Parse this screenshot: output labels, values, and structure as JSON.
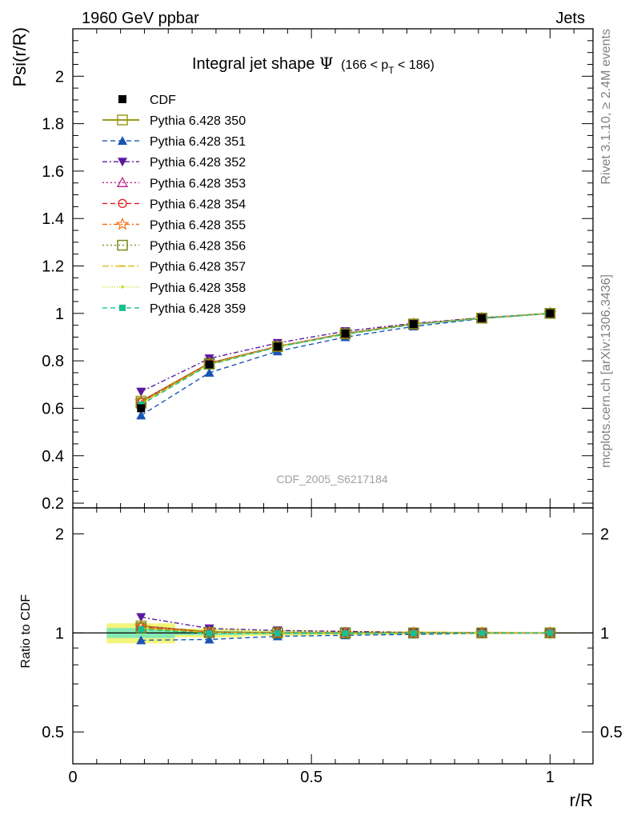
{
  "header": {
    "left": "1960 GeV ppbar",
    "right": "Jets"
  },
  "side_labels": {
    "rivet": "Rivet 3.1.10, ≥ 2.4M events",
    "mcplots": "mcplots.cern.ch [arXiv:1306.3436]"
  },
  "chart_data": {
    "type": "line",
    "title": {
      "main": "Integral jet shape",
      "symbol": "Ψ",
      "range_prefix": "(166 < p",
      "range_sub": "T",
      "range_suffix": " < 186)"
    },
    "analysis_label": "CDF_2005_S6217184",
    "xlabel": "r/R",
    "ylabel_top": "Psi(r/R)",
    "ylabel_bottom": "Ratio to CDF",
    "xlim": [
      0,
      1.09
    ],
    "ylim_top": [
      0.18,
      2.2
    ],
    "ylim_bottom_log": [
      0.4,
      2.4
    ],
    "x_ticks": [
      {
        "v": 0,
        "label": "0"
      },
      {
        "v": 0.5,
        "label": "0.5"
      },
      {
        "v": 1,
        "label": "1"
      }
    ],
    "y_ticks_top": [
      {
        "v": 0.2,
        "label": "0.2"
      },
      {
        "v": 0.4,
        "label": "0.4"
      },
      {
        "v": 0.6,
        "label": "0.6"
      },
      {
        "v": 0.8,
        "label": "0.8"
      },
      {
        "v": 1.0,
        "label": "1"
      },
      {
        "v": 1.2,
        "label": "1.2"
      },
      {
        "v": 1.4,
        "label": "1.4"
      },
      {
        "v": 1.6,
        "label": "1.6"
      },
      {
        "v": 1.8,
        "label": "1.8"
      },
      {
        "v": 2.0,
        "label": "2"
      }
    ],
    "y_ticks_bottom": [
      {
        "v": 0.5,
        "label": "0.5"
      },
      {
        "v": 1,
        "label": "1"
      },
      {
        "v": 2,
        "label": "2"
      }
    ],
    "x": [
      0.143,
      0.286,
      0.429,
      0.571,
      0.714,
      0.857,
      1.0
    ],
    "data": {
      "name": "CDF",
      "values": [
        0.6,
        0.785,
        0.86,
        0.915,
        0.955,
        0.98,
        1.0
      ],
      "errors": [
        0.01,
        0.008,
        0.006,
        0.005,
        0.004,
        0.003,
        0.0
      ],
      "color": "#000000",
      "marker": "square-filled"
    },
    "ratio_band": {
      "x_edges": [
        0.071,
        0.214,
        0.357,
        0.5,
        0.643,
        0.786,
        0.929,
        1.071
      ],
      "inner": [
        0.035,
        0.015,
        0.01,
        0.008,
        0.006,
        0.004,
        0.002
      ],
      "outer": [
        0.07,
        0.03,
        0.02,
        0.015,
        0.012,
        0.008,
        0.004
      ]
    },
    "series": [
      {
        "name": "Pythia 6.428 350",
        "color": "#9a9a1c",
        "dash": "",
        "marker": "square-open",
        "width": 2.0,
        "values": [
          0.63,
          0.79,
          0.86,
          0.915,
          0.955,
          0.98,
          1.0
        ]
      },
      {
        "name": "Pythia 6.428 351",
        "color": "#1a54b4",
        "dash": "6,4",
        "marker": "triangle-up-filled",
        "width": 1.4,
        "values": [
          0.57,
          0.75,
          0.84,
          0.9,
          0.945,
          0.978,
          1.0
        ]
      },
      {
        "name": "Pythia 6.428 352",
        "color": "#5a1aa0",
        "dash": "6,3,2,3",
        "marker": "triangle-down-filled",
        "width": 1.4,
        "values": [
          0.67,
          0.81,
          0.875,
          0.925,
          0.958,
          0.982,
          1.0
        ]
      },
      {
        "name": "Pythia 6.428 353",
        "color": "#c0208a",
        "dash": "2,3",
        "marker": "triangle-up-open",
        "width": 1.4,
        "values": [
          0.63,
          0.79,
          0.862,
          0.915,
          0.955,
          0.98,
          1.0
        ]
      },
      {
        "name": "Pythia 6.428 354",
        "color": "#e01a1a",
        "dash": "6,4",
        "marker": "circle-open",
        "width": 1.4,
        "values": [
          0.625,
          0.788,
          0.86,
          0.913,
          0.954,
          0.98,
          1.0
        ]
      },
      {
        "name": "Pythia 6.428 355",
        "color": "#f07018",
        "dash": "6,3,2,3",
        "marker": "star-open",
        "width": 1.4,
        "values": [
          0.628,
          0.789,
          0.861,
          0.914,
          0.955,
          0.98,
          1.0
        ]
      },
      {
        "name": "Pythia 6.428 356",
        "color": "#7a8a18",
        "dash": "2,3",
        "marker": "square-open",
        "width": 1.4,
        "values": [
          0.622,
          0.786,
          0.86,
          0.914,
          0.955,
          0.98,
          1.0
        ]
      },
      {
        "name": "Pythia 6.428 357",
        "color": "#d8c018",
        "dash": "8,3,2,3",
        "marker": "dash",
        "width": 1.4,
        "values": [
          0.62,
          0.785,
          0.86,
          0.913,
          0.954,
          0.98,
          1.0
        ]
      },
      {
        "name": "Pythia 6.428 358",
        "color": "#c8e018",
        "dash": "1,2",
        "marker": "dot",
        "width": 1.4,
        "values": [
          0.62,
          0.785,
          0.859,
          0.913,
          0.954,
          0.98,
          1.0
        ]
      },
      {
        "name": "Pythia 6.428 359",
        "color": "#18c090",
        "dash": "6,4",
        "marker": "square-filled-small",
        "width": 1.4,
        "values": [
          0.615,
          0.783,
          0.858,
          0.912,
          0.953,
          0.979,
          1.0
        ]
      }
    ]
  }
}
